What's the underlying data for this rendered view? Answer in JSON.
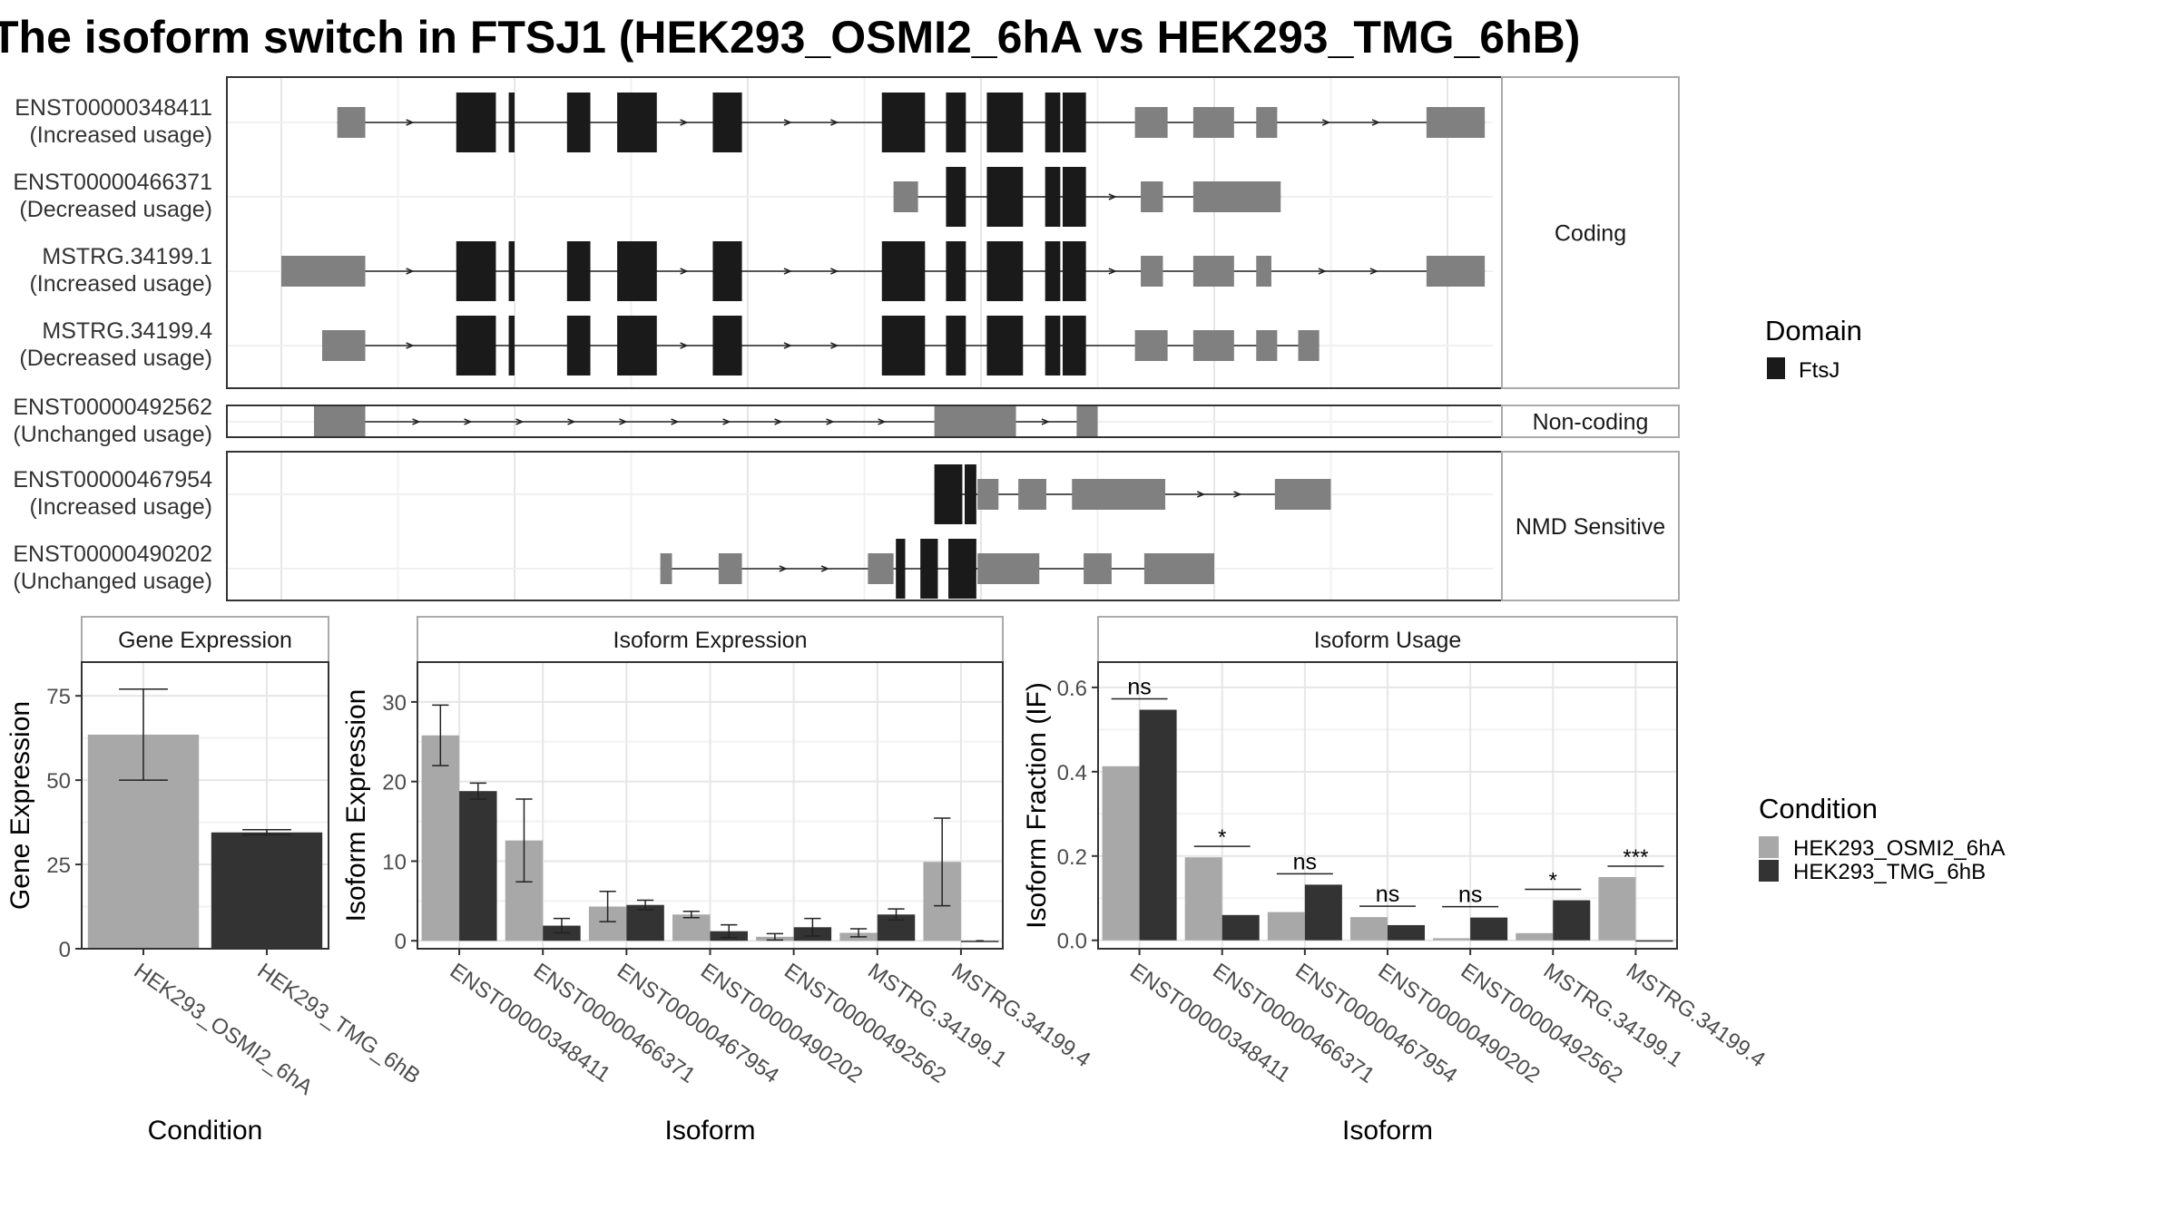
{
  "title": "The isoform switch in FTSJ1 (HEK293_OSMI2_6hA vs HEK293_TMG_6hB)",
  "colors": {
    "domain": "#1a1a1a",
    "exon": "#808080",
    "cond_a": "#a8a8a8",
    "cond_b": "#333333"
  },
  "structure": {
    "x_range": [
      0,
      1000
    ],
    "panels": [
      {
        "label": "Coding",
        "transcripts": [
          {
            "id": "ENST00000348411",
            "status": "(Increased usage)",
            "exons": [
              [
                48,
                72,
                "utr"
              ],
              [
                150,
                184,
                "cds"
              ],
              [
                195,
                200,
                "cds"
              ],
              [
                245,
                265,
                "cds"
              ],
              [
                288,
                322,
                "cds"
              ],
              [
                370,
                395,
                "cds"
              ],
              [
                515,
                552,
                "cds"
              ],
              [
                570,
                587,
                "cds"
              ],
              [
                605,
                636,
                "cds"
              ],
              [
                655,
                668,
                "cds"
              ],
              [
                670,
                690,
                "cds"
              ],
              [
                732,
                760,
                "utr"
              ],
              [
                782,
                817,
                "utr"
              ],
              [
                836,
                854,
                "utr"
              ],
              [
                982,
                1032,
                "utr"
              ]
            ]
          },
          {
            "id": "ENST00000466371",
            "status": "(Decreased usage)",
            "exons": [
              [
                525,
                546,
                "utr"
              ],
              [
                570,
                587,
                "cds"
              ],
              [
                605,
                636,
                "cds"
              ],
              [
                655,
                668,
                "cds"
              ],
              [
                670,
                690,
                "cds"
              ],
              [
                737,
                756,
                "utr"
              ],
              [
                782,
                857,
                "utr"
              ]
            ]
          },
          {
            "id": "MSTRG.34199.1",
            "status": "(Increased usage)",
            "exons": [
              [
                0,
                72,
                "utr"
              ],
              [
                150,
                184,
                "cds"
              ],
              [
                195,
                200,
                "cds"
              ],
              [
                245,
                265,
                "cds"
              ],
              [
                288,
                322,
                "cds"
              ],
              [
                370,
                395,
                "cds"
              ],
              [
                515,
                552,
                "cds"
              ],
              [
                570,
                587,
                "cds"
              ],
              [
                605,
                636,
                "cds"
              ],
              [
                655,
                668,
                "cds"
              ],
              [
                670,
                690,
                "cds"
              ],
              [
                737,
                756,
                "utr"
              ],
              [
                782,
                817,
                "utr"
              ],
              [
                836,
                849,
                "utr"
              ],
              [
                982,
                1032,
                "utr"
              ]
            ]
          },
          {
            "id": "MSTRG.34199.4",
            "status": "(Decreased usage)",
            "exons": [
              [
                35,
                72,
                "utr"
              ],
              [
                150,
                184,
                "cds"
              ],
              [
                195,
                200,
                "cds"
              ],
              [
                245,
                265,
                "cds"
              ],
              [
                288,
                322,
                "cds"
              ],
              [
                370,
                395,
                "cds"
              ],
              [
                515,
                552,
                "cds"
              ],
              [
                570,
                587,
                "cds"
              ],
              [
                605,
                636,
                "cds"
              ],
              [
                655,
                668,
                "cds"
              ],
              [
                670,
                690,
                "cds"
              ],
              [
                732,
                760,
                "utr"
              ],
              [
                782,
                817,
                "utr"
              ],
              [
                836,
                854,
                "utr"
              ],
              [
                872,
                890,
                "utr"
              ]
            ]
          }
        ]
      },
      {
        "label": "Non-coding",
        "transcripts": [
          {
            "id": "ENST00000492562",
            "status": "(Unchanged usage)",
            "exons": [
              [
                28,
                72,
                "utr"
              ],
              [
                560,
                630,
                "utr"
              ],
              [
                682,
                700,
                "utr"
              ]
            ]
          }
        ]
      },
      {
        "label": "NMD Sensitive",
        "transcripts": [
          {
            "id": "ENST00000467954",
            "status": "(Increased usage)",
            "exons": [
              [
                560,
                584,
                "cds"
              ],
              [
                586,
                596,
                "cds"
              ],
              [
                597,
                615,
                "utr"
              ],
              [
                632,
                656,
                "utr"
              ],
              [
                678,
                758,
                "utr"
              ],
              [
                852,
                900,
                "utr"
              ]
            ]
          },
          {
            "id": "ENST00000490202",
            "status": "(Unchanged usage)",
            "exons": [
              [
                325,
                335,
                "utr"
              ],
              [
                375,
                395,
                "utr"
              ],
              [
                503,
                525,
                "utr"
              ],
              [
                527,
                535,
                "cds"
              ],
              [
                548,
                563,
                "cds"
              ],
              [
                572,
                596,
                "cds"
              ],
              [
                597,
                650,
                "utr"
              ],
              [
                688,
                712,
                "utr"
              ],
              [
                740,
                800,
                "utr"
              ]
            ]
          }
        ]
      }
    ]
  },
  "chart_data": [
    {
      "type": "bar",
      "title": "Gene Expression",
      "xlabel": "Condition",
      "ylabel": "Gene Expression",
      "ylim": [
        0,
        85
      ],
      "yticks": [
        0,
        25,
        50,
        75
      ],
      "categories": [
        "HEK293_OSMI2_6hA",
        "HEK293_TMG_6hB"
      ],
      "values": [
        63.5,
        34.5
      ],
      "errors": [
        [
          50,
          77
        ],
        [
          33.8,
          35.3
        ]
      ]
    },
    {
      "type": "bar",
      "title": "Isoform Expression",
      "xlabel": "Isoform",
      "ylabel": "Isoform Expression",
      "ylim": [
        -1,
        35
      ],
      "yticks": [
        0,
        10,
        20,
        30
      ],
      "categories": [
        "ENST00000348411",
        "ENST00000466371",
        "ENST00000467954",
        "ENST00000490202",
        "ENST00000492562",
        "MSTRG.34199.1",
        "MSTRG.34199.4"
      ],
      "series": [
        {
          "name": "HEK293_OSMI2_6hA",
          "values": [
            25.8,
            12.6,
            4.3,
            3.3,
            0.5,
            1.0,
            9.9
          ],
          "errors": [
            [
              22,
              29.6
            ],
            [
              7.4,
              17.8
            ],
            [
              2.4,
              6.2
            ],
            [
              2.9,
              3.7
            ],
            [
              0.1,
              0.9
            ],
            [
              0.5,
              1.5
            ],
            [
              4.4,
              15.4
            ]
          ]
        },
        {
          "name": "HEK293_TMG_6hB",
          "values": [
            18.8,
            1.9,
            4.5,
            1.2,
            1.7,
            3.3,
            0.0
          ],
          "errors": [
            [
              17.8,
              19.8
            ],
            [
              1.0,
              2.8
            ],
            [
              3.9,
              5.1
            ],
            [
              0.4,
              2.0
            ],
            [
              0.6,
              2.8
            ],
            [
              2.6,
              4.0
            ],
            [
              0.0,
              0.0
            ]
          ]
        }
      ]
    },
    {
      "type": "bar",
      "title": "Isoform Usage",
      "xlabel": "Isoform",
      "ylabel": "Isoform Fraction (IF)",
      "ylim": [
        -0.02,
        0.66
      ],
      "yticks": [
        0.0,
        0.2,
        0.4,
        0.6
      ],
      "categories": [
        "ENST00000348411",
        "ENST00000466371",
        "ENST00000467954",
        "ENST00000490202",
        "ENST00000492562",
        "MSTRG.34199.1",
        "MSTRG.34199.4"
      ],
      "series": [
        {
          "name": "HEK293_OSMI2_6hA",
          "values": [
            0.413,
            0.197,
            0.067,
            0.055,
            0.005,
            0.017,
            0.15
          ]
        },
        {
          "name": "HEK293_TMG_6hB",
          "values": [
            0.547,
            0.06,
            0.132,
            0.036,
            0.054,
            0.095,
            0.0
          ]
        }
      ],
      "significance": [
        "ns",
        "*",
        "ns",
        "ns",
        "ns",
        "*",
        "***"
      ]
    }
  ],
  "legend_domain": {
    "title": "Domain",
    "items": [
      {
        "label": "FtsJ"
      }
    ]
  },
  "legend_condition": {
    "title": "Condition",
    "items": [
      {
        "label": "HEK293_OSMI2_6hA"
      },
      {
        "label": "HEK293_TMG_6hB"
      }
    ]
  }
}
